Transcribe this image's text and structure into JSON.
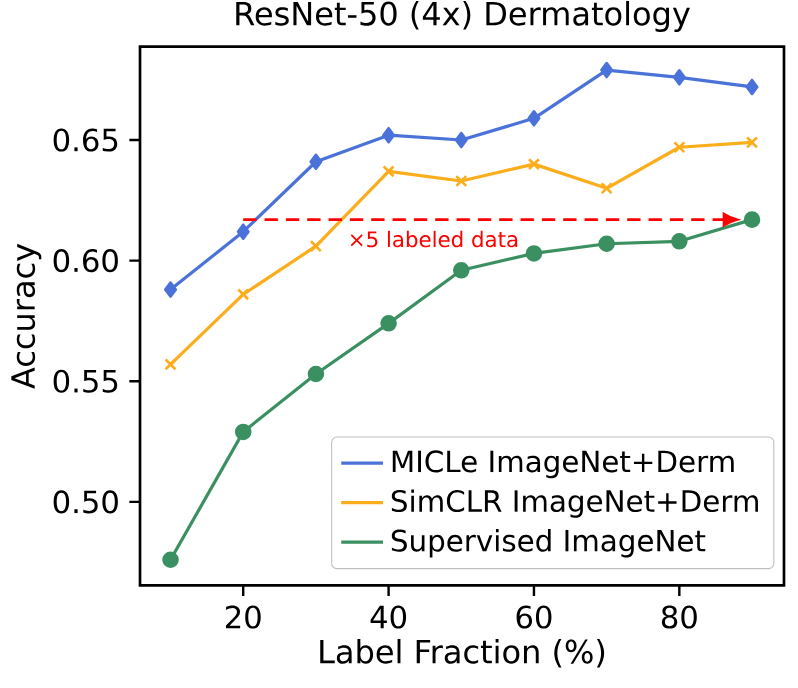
{
  "chart_data": {
    "type": "line",
    "title": "ResNet-50 (4x) Dermatology",
    "xlabel": "Label Fraction (%)",
    "ylabel": "Accuracy",
    "x": [
      10,
      20,
      30,
      40,
      50,
      60,
      70,
      80,
      90
    ],
    "series": [
      {
        "name": "MICLe ImageNet+Derm",
        "color": "#4a72d9",
        "marker": "diamond",
        "values": [
          0.588,
          0.612,
          0.641,
          0.652,
          0.65,
          0.659,
          0.679,
          0.676,
          0.672
        ]
      },
      {
        "name": "SimCLR ImageNet+Derm",
        "color": "#fbad1c",
        "marker": "cross",
        "values": [
          0.557,
          0.586,
          0.606,
          0.637,
          0.633,
          0.64,
          0.63,
          0.647,
          0.649
        ]
      },
      {
        "name": "Supervised ImageNet",
        "color": "#3a9060",
        "marker": "circle",
        "values": [
          0.476,
          0.529,
          0.553,
          0.574,
          0.596,
          0.603,
          0.607,
          0.608,
          0.617
        ]
      }
    ],
    "annotations": [
      "×5 labeled data"
    ],
    "xlim": [
      5.8,
      94.4
    ],
    "ylim": [
      0.4654,
      0.6887
    ],
    "xticks": [
      20,
      40,
      60,
      80
    ],
    "yticks": [
      {
        "value": 0.5,
        "label": "0.50"
      },
      {
        "value": 0.55,
        "label": "0.55"
      },
      {
        "value": 0.6,
        "label": "0.60"
      },
      {
        "value": 0.65,
        "label": "0.65"
      }
    ],
    "grid": false,
    "legend": "bottom right",
    "line_style": "solid"
  }
}
